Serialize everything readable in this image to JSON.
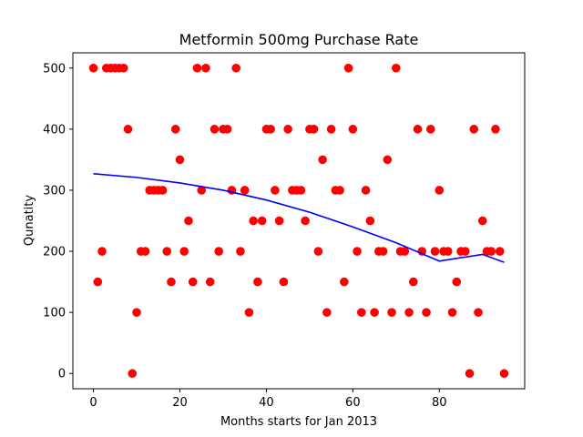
{
  "chart_data": {
    "type": "scatter",
    "title": "Metformin 500mg Purchase Rate",
    "xlabel": "Months starts for Jan 2013",
    "ylabel": "Qunatity",
    "xlim": [
      -4.75,
      99.75
    ],
    "ylim": [
      -25,
      525
    ],
    "xticks": [
      0,
      20,
      40,
      60,
      80
    ],
    "yticks": [
      0,
      100,
      200,
      300,
      400,
      500
    ],
    "grid": false,
    "legend": "none",
    "colors": {
      "points": "#ff0000",
      "fit_line": "#0000ff",
      "axes": "#000000"
    },
    "series": [
      {
        "kind": "points",
        "x": [
          0,
          1,
          2,
          3,
          4,
          5,
          6,
          7,
          8,
          9,
          10,
          11,
          12,
          13,
          14,
          15,
          16,
          17,
          18,
          19,
          20,
          21,
          22,
          23,
          24,
          25,
          26,
          27,
          28,
          29,
          30,
          31,
          32,
          33,
          34,
          35,
          36,
          37,
          38,
          39,
          40,
          41,
          42,
          43,
          44,
          45,
          46,
          47,
          48,
          49,
          50,
          51,
          52,
          53,
          54,
          55,
          56,
          57,
          58,
          59,
          60,
          61,
          62,
          63,
          64,
          65,
          66,
          67,
          68,
          69,
          70,
          71,
          72,
          73,
          74,
          75,
          76,
          77,
          78,
          79,
          80,
          81,
          82,
          83,
          84,
          85,
          86,
          87,
          88,
          89,
          90,
          91,
          92,
          93,
          94,
          95
        ],
        "y": [
          500,
          150,
          200,
          500,
          500,
          500,
          500,
          500,
          400,
          0,
          100,
          200,
          200,
          300,
          300,
          300,
          300,
          200,
          150,
          400,
          350,
          200,
          250,
          150,
          500,
          300,
          500,
          150,
          400,
          200,
          400,
          400,
          300,
          500,
          200,
          300,
          100,
          250,
          150,
          250,
          400,
          400,
          300,
          250,
          150,
          400,
          300,
          300,
          300,
          250,
          400,
          400,
          200,
          350,
          100,
          400,
          300,
          300,
          150,
          500,
          400,
          200,
          100,
          300,
          250,
          100,
          200,
          200,
          350,
          100,
          500,
          200,
          200,
          100,
          150,
          400,
          200,
          100,
          400,
          200,
          300,
          200,
          200,
          100,
          150,
          200,
          200,
          0,
          400,
          100,
          250,
          200,
          200,
          400,
          200,
          0
        ]
      },
      {
        "kind": "line",
        "x": [
          0,
          10,
          20,
          30,
          40,
          50,
          60,
          70,
          80,
          90,
          95
        ],
        "y": [
          327,
          321,
          312,
          300,
          284,
          264,
          240,
          214,
          184,
          195,
          182
        ]
      }
    ]
  }
}
